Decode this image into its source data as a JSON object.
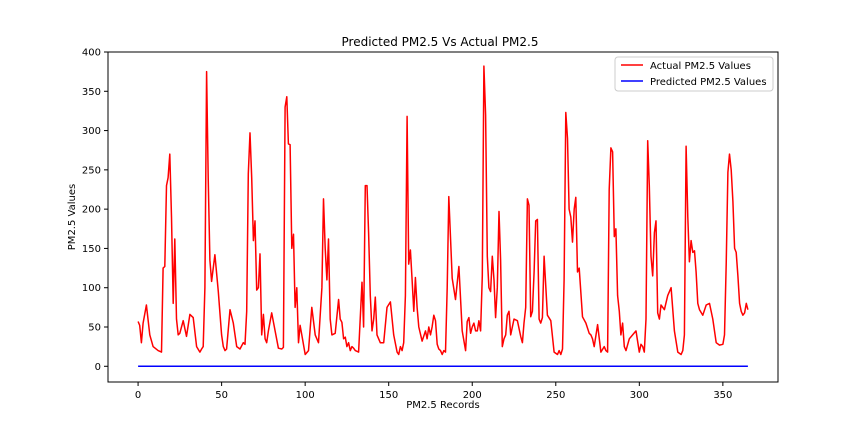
{
  "chart_data": {
    "type": "line",
    "title": "Predicted PM2.5 Vs Actual PM2.5",
    "xlabel": "PM2.5 Records",
    "ylabel": "PM2.5 Values",
    "xlim": [
      -18,
      383
    ],
    "ylim": [
      -20,
      400
    ],
    "xticks": [
      0,
      50,
      100,
      150,
      200,
      250,
      300,
      350
    ],
    "yticks": [
      0,
      50,
      100,
      150,
      200,
      250,
      300,
      350,
      400
    ],
    "grid": false,
    "legend_position": "top-right",
    "series": [
      {
        "name": "Actual PM2.5 Values",
        "color": "#ff0000",
        "x": [
          0,
          1,
          2,
          3,
          5,
          7,
          9,
          12,
          14,
          15,
          16,
          17,
          18,
          19,
          20,
          21,
          22,
          23,
          24,
          25,
          27,
          29,
          30,
          31,
          33,
          35,
          37,
          38,
          39,
          40,
          41,
          42,
          43,
          44,
          46,
          48,
          50,
          51,
          52,
          53,
          55,
          57,
          59,
          61,
          63,
          64,
          65,
          66,
          67,
          68,
          69,
          70,
          71,
          72,
          73,
          74,
          75,
          76,
          77,
          78,
          80,
          82,
          84,
          86,
          87,
          88,
          89,
          90,
          91,
          92,
          93,
          94,
          95,
          96,
          97,
          98,
          100,
          102,
          104,
          106,
          108,
          110,
          111,
          112,
          113,
          114,
          115,
          116,
          118,
          120,
          121,
          122,
          123,
          124,
          125,
          126,
          127,
          128,
          129,
          130,
          132,
          134,
          135,
          136,
          137,
          138,
          139,
          140,
          141,
          142,
          143,
          145,
          147,
          149,
          151,
          153,
          155,
          156,
          157,
          158,
          159,
          160,
          161,
          162,
          163,
          164,
          165,
          166,
          167,
          168,
          170,
          172,
          173,
          174,
          175,
          176,
          177,
          178,
          179,
          180,
          181,
          182,
          183,
          184,
          185,
          186,
          188,
          190,
          192,
          194,
          196,
          197,
          198,
          199,
          200,
          201,
          202,
          203,
          204,
          205,
          206,
          207,
          208,
          209,
          210,
          211,
          212,
          213,
          214,
          215,
          216,
          217,
          218,
          219,
          220,
          221,
          222,
          223,
          225,
          227,
          229,
          230,
          231,
          232,
          233,
          234,
          235,
          236,
          237,
          238,
          239,
          240,
          241,
          242,
          243,
          245,
          247,
          249,
          251,
          252,
          253,
          254,
          255,
          256,
          257,
          258,
          259,
          260,
          261,
          262,
          263,
          264,
          266,
          268,
          270,
          271,
          272,
          273,
          275,
          277,
          279,
          280,
          281,
          282,
          283,
          284,
          285,
          286,
          287,
          288,
          289,
          290,
          291,
          292,
          294,
          296,
          298,
          300,
          301,
          302,
          303,
          304,
          305,
          306,
          307,
          308,
          309,
          310,
          311,
          312,
          313,
          315,
          317,
          319,
          321,
          323,
          325,
          326,
          327,
          328,
          329,
          330,
          331,
          332,
          333,
          334,
          335,
          336,
          338,
          340,
          342,
          344,
          346,
          348,
          350,
          351,
          352,
          353,
          354,
          355,
          356,
          357,
          358,
          359,
          360,
          361,
          362,
          363,
          364,
          365
        ],
        "y": [
          57,
          52,
          30,
          55,
          78,
          40,
          25,
          20,
          18,
          125,
          127,
          230,
          240,
          270,
          190,
          80,
          162,
          60,
          40,
          42,
          58,
          38,
          52,
          66,
          62,
          25,
          18,
          22,
          25,
          100,
          375,
          240,
          135,
          108,
          142,
          95,
          40,
          25,
          20,
          22,
          72,
          55,
          25,
          22,
          30,
          28,
          70,
          245,
          297,
          240,
          160,
          185,
          97,
          100,
          143,
          40,
          66,
          35,
          30,
          45,
          68,
          45,
          23,
          22,
          24,
          330,
          343,
          283,
          282,
          150,
          168,
          75,
          100,
          30,
          52,
          40,
          15,
          20,
          75,
          40,
          30,
          100,
          213,
          150,
          110,
          162,
          60,
          40,
          42,
          85,
          60,
          56,
          35,
          37,
          25,
          30,
          20,
          25,
          23,
          20,
          18,
          107,
          50,
          230,
          230,
          170,
          90,
          45,
          60,
          88,
          40,
          30,
          30,
          75,
          82,
          40,
          18,
          15,
          25,
          20,
          30,
          90,
          318,
          130,
          148,
          110,
          70,
          113,
          75,
          50,
          32,
          45,
          35,
          50,
          40,
          50,
          65,
          58,
          28,
          22,
          20,
          15,
          20,
          18,
          100,
          216,
          112,
          85,
          127,
          45,
          20,
          57,
          62,
          42,
          50,
          55,
          45,
          45,
          58,
          45,
          115,
          382,
          320,
          140,
          100,
          95,
          140,
          110,
          62,
          100,
          197,
          135,
          25,
          35,
          40,
          65,
          70,
          40,
          60,
          58,
          38,
          30,
          55,
          75,
          213,
          205,
          63,
          70,
          120,
          185,
          187,
          60,
          55,
          62,
          140,
          65,
          58,
          18,
          15,
          20,
          15,
          22,
          110,
          323,
          290,
          200,
          190,
          158,
          200,
          215,
          120,
          125,
          63,
          55,
          42,
          40,
          35,
          25,
          53,
          18,
          25,
          20,
          18,
          225,
          278,
          273,
          165,
          175,
          90,
          70,
          40,
          55,
          25,
          20,
          35,
          40,
          45,
          18,
          28,
          25,
          18,
          60,
          287,
          230,
          140,
          115,
          170,
          185,
          68,
          60,
          78,
          72,
          90,
          100,
          45,
          18,
          15,
          20,
          40,
          280,
          190,
          133,
          160,
          145,
          147,
          120,
          80,
          72,
          65,
          78,
          80,
          60,
          30,
          27,
          28,
          40,
          130,
          247,
          270,
          250,
          210,
          150,
          145,
          115,
          80,
          70,
          65,
          68,
          80,
          72
        ]
      },
      {
        "name": "Predicted PM2.5 Values",
        "color": "#0000ff",
        "x": [
          0,
          365
        ],
        "y": [
          0,
          0
        ]
      }
    ]
  }
}
